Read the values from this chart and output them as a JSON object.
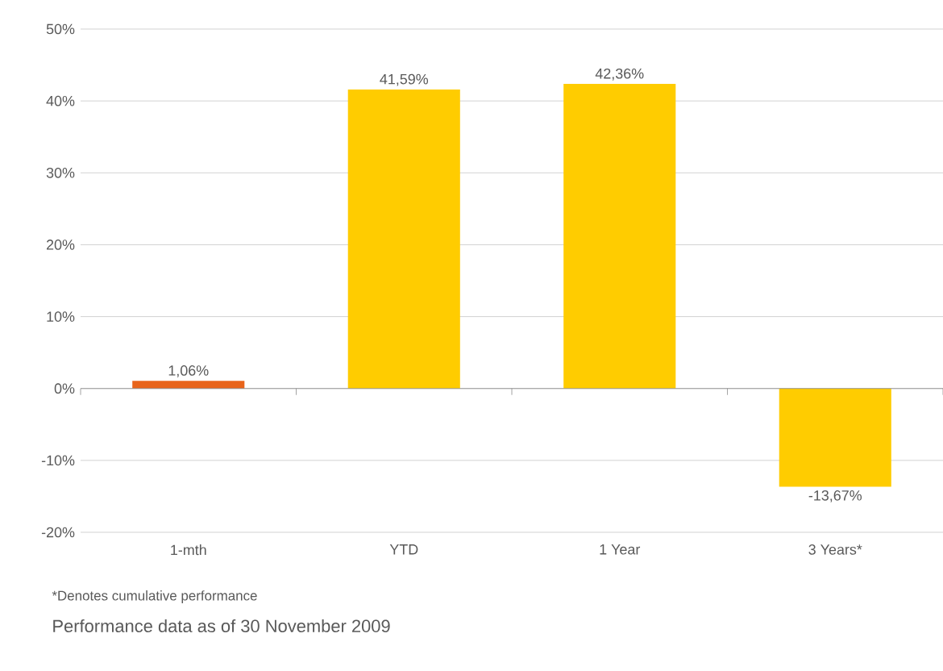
{
  "chart_data": {
    "type": "bar",
    "categories": [
      "1-mth",
      "YTD",
      "1 Year",
      "3 Years*"
    ],
    "values": [
      1.06,
      41.59,
      42.36,
      -13.67
    ],
    "colors": [
      "#e8641b",
      "#ffcc00",
      "#ffcc00",
      "#ffcc00"
    ],
    "value_labels": [
      "1,06%",
      "41,59%",
      "42,36%",
      "-13,67%"
    ],
    "ylim": [
      -20,
      50
    ],
    "yticks": [
      {
        "value": -20,
        "label": "-20%"
      },
      {
        "value": -10,
        "label": "-10%"
      },
      {
        "value": 0,
        "label": "0%"
      },
      {
        "value": 10,
        "label": "10%"
      },
      {
        "value": 20,
        "label": "20%"
      },
      {
        "value": 30,
        "label": "30%"
      },
      {
        "value": 40,
        "label": "40%"
      },
      {
        "value": 50,
        "label": "50%"
      }
    ],
    "grid": "y",
    "annotations": [
      "*Denotes cumulative performance",
      "Performance data as of 30 November 2009"
    ]
  }
}
